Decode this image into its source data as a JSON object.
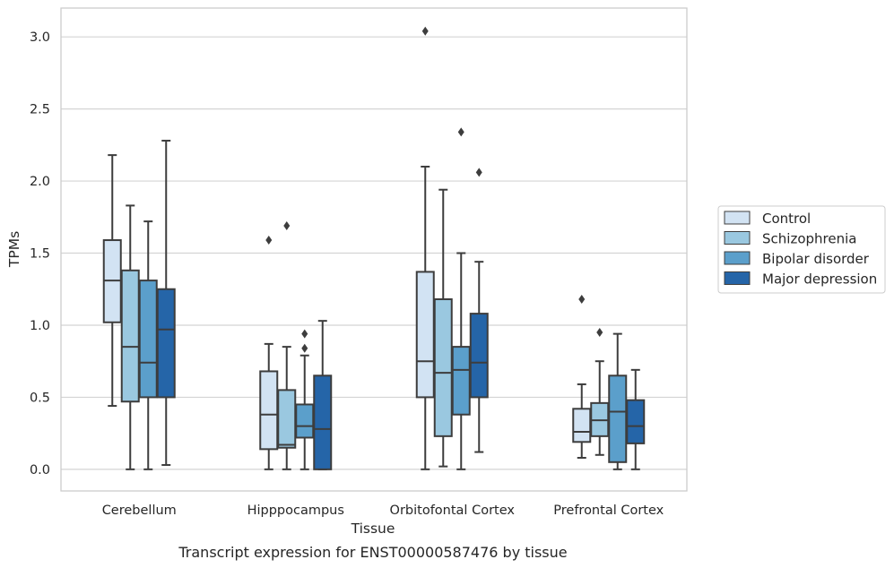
{
  "chart_data": {
    "type": "box",
    "xlabel": "Tissue",
    "ylabel": "TPMs",
    "caption": "Transcript expression for ENST00000587476 by tissue",
    "ylim": [
      -0.15,
      3.2
    ],
    "yticks": [
      "0.0",
      "0.5",
      "1.0",
      "1.5",
      "2.0",
      "2.5",
      "3.0"
    ],
    "grid": "horizontal",
    "legend_position": "right",
    "categories": [
      "Cerebellum",
      "Hipppocampus",
      "Orbitofontal Cortex",
      "Prefrontal Cortex"
    ],
    "series": [
      {
        "name": "Control",
        "color": "#d2e3f3",
        "boxes": [
          {
            "min": 0.44,
            "q1": 1.02,
            "median": 1.31,
            "q3": 1.59,
            "max": 2.18,
            "outliers": []
          },
          {
            "min": 0.0,
            "q1": 0.14,
            "median": 0.38,
            "q3": 0.68,
            "max": 0.87,
            "outliers": [
              1.59
            ]
          },
          {
            "min": 0.0,
            "q1": 0.5,
            "median": 0.75,
            "q3": 1.37,
            "max": 2.1,
            "outliers": [
              3.04
            ]
          },
          {
            "min": 0.08,
            "q1": 0.19,
            "median": 0.26,
            "q3": 0.42,
            "max": 0.59,
            "outliers": [
              1.18
            ]
          }
        ]
      },
      {
        "name": "Schizophrenia",
        "color": "#9ac8e0",
        "boxes": [
          {
            "min": 0.0,
            "q1": 0.47,
            "median": 0.85,
            "q3": 1.38,
            "max": 1.83,
            "outliers": []
          },
          {
            "min": 0.0,
            "q1": 0.15,
            "median": 0.17,
            "q3": 0.55,
            "max": 0.85,
            "outliers": [
              1.69
            ]
          },
          {
            "min": 0.02,
            "q1": 0.23,
            "median": 0.67,
            "q3": 1.18,
            "max": 1.94,
            "outliers": []
          },
          {
            "min": 0.1,
            "q1": 0.23,
            "median": 0.34,
            "q3": 0.46,
            "max": 0.75,
            "outliers": [
              0.95
            ]
          }
        ]
      },
      {
        "name": "Bipolar disorder",
        "color": "#5b9fcb",
        "boxes": [
          {
            "min": 0.0,
            "q1": 0.5,
            "median": 0.74,
            "q3": 1.31,
            "max": 1.72,
            "outliers": []
          },
          {
            "min": 0.0,
            "q1": 0.22,
            "median": 0.3,
            "q3": 0.45,
            "max": 0.79,
            "outliers": [
              0.84,
              0.94
            ]
          },
          {
            "min": 0.0,
            "q1": 0.38,
            "median": 0.69,
            "q3": 0.85,
            "max": 1.5,
            "outliers": [
              2.34
            ]
          },
          {
            "min": 0.0,
            "q1": 0.05,
            "median": 0.4,
            "q3": 0.65,
            "max": 0.94,
            "outliers": []
          }
        ]
      },
      {
        "name": "Major depression",
        "color": "#2565a8",
        "boxes": [
          {
            "min": 0.03,
            "q1": 0.5,
            "median": 0.97,
            "q3": 1.25,
            "max": 2.28,
            "outliers": []
          },
          {
            "min": 0.0,
            "q1": 0.0,
            "median": 0.28,
            "q3": 0.65,
            "max": 1.03,
            "outliers": []
          },
          {
            "min": 0.12,
            "q1": 0.5,
            "median": 0.74,
            "q3": 1.08,
            "max": 1.44,
            "outliers": [
              2.06
            ]
          },
          {
            "min": 0.0,
            "q1": 0.18,
            "median": 0.3,
            "q3": 0.48,
            "max": 0.69,
            "outliers": []
          }
        ]
      }
    ]
  }
}
